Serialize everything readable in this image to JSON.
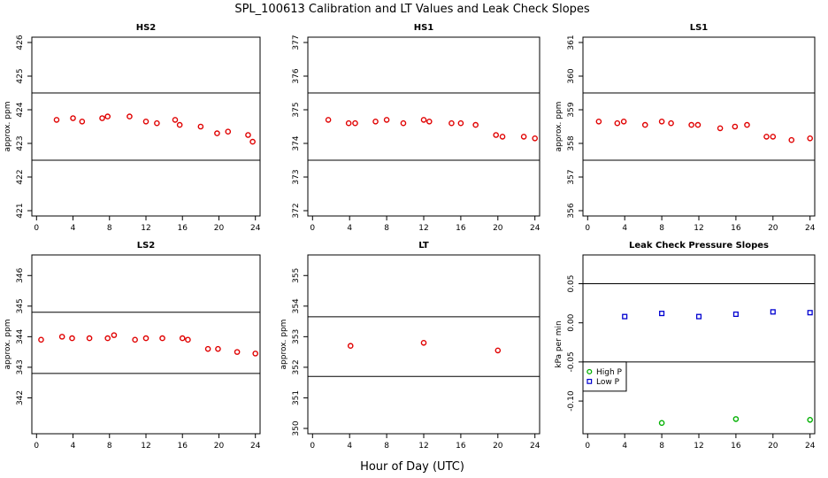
{
  "figure": {
    "title": "SPL_100613  Calibration and LT Values and Leak Check Slopes",
    "xlabel": "Hour of Day (UTC)"
  },
  "chart_data": [
    {
      "type": "scatter",
      "title": "HS2",
      "ylabel": "approx. ppm",
      "xlim": [
        0,
        24
      ],
      "ylim": [
        421,
        426
      ],
      "xticks": [
        "0",
        "4",
        "8",
        "12",
        "16",
        "20",
        "24"
      ],
      "yticks": [
        "421",
        "422",
        "423",
        "424",
        "425",
        "426"
      ],
      "hlines": [
        424.5,
        422.5
      ],
      "series": [
        {
          "color": "#e00000",
          "marker": "circle",
          "points": [
            [
              2.2,
              423.7
            ],
            [
              4.0,
              423.75
            ],
            [
              5.0,
              423.65
            ],
            [
              7.2,
              423.75
            ],
            [
              7.8,
              423.8
            ],
            [
              10.2,
              423.8
            ],
            [
              12.0,
              423.65
            ],
            [
              13.2,
              423.6
            ],
            [
              15.2,
              423.7
            ],
            [
              15.7,
              423.55
            ],
            [
              18.0,
              423.5
            ],
            [
              19.8,
              423.3
            ],
            [
              21.0,
              423.35
            ],
            [
              23.2,
              423.25
            ],
            [
              23.7,
              423.05
            ]
          ]
        }
      ]
    },
    {
      "type": "scatter",
      "title": "HS1",
      "ylabel": "",
      "xlim": [
        0,
        24
      ],
      "ylim": [
        372,
        377
      ],
      "xticks": [
        "0",
        "4",
        "8",
        "12",
        "16",
        "20",
        "24"
      ],
      "yticks": [
        "372",
        "373",
        "374",
        "375",
        "376",
        "377"
      ],
      "hlines": [
        375.5,
        373.5
      ],
      "series": [
        {
          "color": "#e00000",
          "marker": "circle",
          "points": [
            [
              1.7,
              374.7
            ],
            [
              3.9,
              374.6
            ],
            [
              4.6,
              374.6
            ],
            [
              6.8,
              374.65
            ],
            [
              8.0,
              374.7
            ],
            [
              9.8,
              374.6
            ],
            [
              12.0,
              374.7
            ],
            [
              12.6,
              374.65
            ],
            [
              15.0,
              374.6
            ],
            [
              16.0,
              374.6
            ],
            [
              17.6,
              374.55
            ],
            [
              19.8,
              374.25
            ],
            [
              20.5,
              374.2
            ],
            [
              22.8,
              374.2
            ],
            [
              24.0,
              374.15
            ]
          ]
        }
      ]
    },
    {
      "type": "scatter",
      "title": "LS1",
      "ylabel": "approx. ppm",
      "xlim": [
        0,
        24
      ],
      "ylim": [
        356,
        361
      ],
      "xticks": [
        "0",
        "4",
        "8",
        "12",
        "16",
        "20",
        "24"
      ],
      "yticks": [
        "356",
        "357",
        "358",
        "359",
        "360",
        "361"
      ],
      "hlines": [
        359.5,
        357.5
      ],
      "series": [
        {
          "color": "#e00000",
          "marker": "circle",
          "points": [
            [
              1.2,
              358.65
            ],
            [
              3.2,
              358.6
            ],
            [
              3.9,
              358.65
            ],
            [
              6.2,
              358.55
            ],
            [
              8.0,
              358.65
            ],
            [
              9.0,
              358.6
            ],
            [
              11.2,
              358.55
            ],
            [
              11.9,
              358.55
            ],
            [
              14.3,
              358.45
            ],
            [
              15.9,
              358.5
            ],
            [
              17.2,
              358.55
            ],
            [
              19.3,
              358.2
            ],
            [
              20.0,
              358.2
            ],
            [
              22.0,
              358.1
            ],
            [
              24.0,
              358.15
            ]
          ]
        }
      ]
    },
    {
      "type": "scatter",
      "title": "LS2",
      "ylabel": "approx. ppm",
      "xlim": [
        0,
        24
      ],
      "ylim": [
        341,
        346.5
      ],
      "xticks": [
        "0",
        "4",
        "8",
        "12",
        "16",
        "20",
        "24"
      ],
      "yticks": [
        "342",
        "343",
        "344",
        "345",
        "346"
      ],
      "hlines": [
        344.8,
        342.8
      ],
      "series": [
        {
          "color": "#e00000",
          "marker": "circle",
          "points": [
            [
              0.5,
              343.9
            ],
            [
              2.8,
              344.0
            ],
            [
              3.9,
              343.95
            ],
            [
              5.8,
              343.95
            ],
            [
              7.8,
              343.95
            ],
            [
              8.5,
              344.05
            ],
            [
              10.8,
              343.9
            ],
            [
              12.0,
              343.95
            ],
            [
              13.8,
              343.95
            ],
            [
              16.0,
              343.95
            ],
            [
              16.6,
              343.9
            ],
            [
              18.8,
              343.6
            ],
            [
              19.9,
              343.6
            ],
            [
              22.0,
              343.5
            ],
            [
              24.0,
              343.45
            ]
          ]
        }
      ]
    },
    {
      "type": "scatter",
      "title": "LT",
      "ylabel": "approx. ppm",
      "xlim": [
        0,
        24
      ],
      "ylim": [
        350,
        355.5
      ],
      "xticks": [
        "0",
        "4",
        "8",
        "12",
        "16",
        "20",
        "24"
      ],
      "yticks": [
        "350",
        "351",
        "352",
        "353",
        "354",
        "355"
      ],
      "hlines": [
        353.65,
        351.7
      ],
      "series": [
        {
          "color": "#e00000",
          "marker": "circle",
          "points": [
            [
              4.1,
              352.7
            ],
            [
              12.0,
              352.8
            ],
            [
              20.0,
              352.55
            ]
          ]
        }
      ]
    },
    {
      "type": "scatter",
      "title": "Leak Check Pressure Slopes",
      "ylabel": "kPa per min",
      "xlim": [
        0,
        24
      ],
      "ylim": [
        -0.135,
        0.08
      ],
      "xticks": [
        "0",
        "4",
        "8",
        "12",
        "16",
        "20",
        "24"
      ],
      "yticks": [
        "-0.10",
        "-0.05",
        "0.00",
        "0.05"
      ],
      "ytick_values": [
        -0.1,
        -0.05,
        0.0,
        0.05
      ],
      "hlines": [
        0.05,
        -0.05
      ],
      "legend": {
        "position": "bottom-left",
        "entries": [
          "High P",
          "Low P"
        ]
      },
      "series": [
        {
          "name": "High P",
          "color": "#00b000",
          "marker": "circle",
          "points": [
            [
              8.0,
              -0.128
            ],
            [
              16.0,
              -0.123
            ],
            [
              24.0,
              -0.124
            ]
          ]
        },
        {
          "name": "Low P",
          "color": "#0000d0",
          "marker": "square",
          "points": [
            [
              4.0,
              0.008
            ],
            [
              8.0,
              0.012
            ],
            [
              12.0,
              0.008
            ],
            [
              16.0,
              0.011
            ],
            [
              20.0,
              0.014
            ],
            [
              24.0,
              0.013
            ]
          ]
        }
      ]
    }
  ]
}
